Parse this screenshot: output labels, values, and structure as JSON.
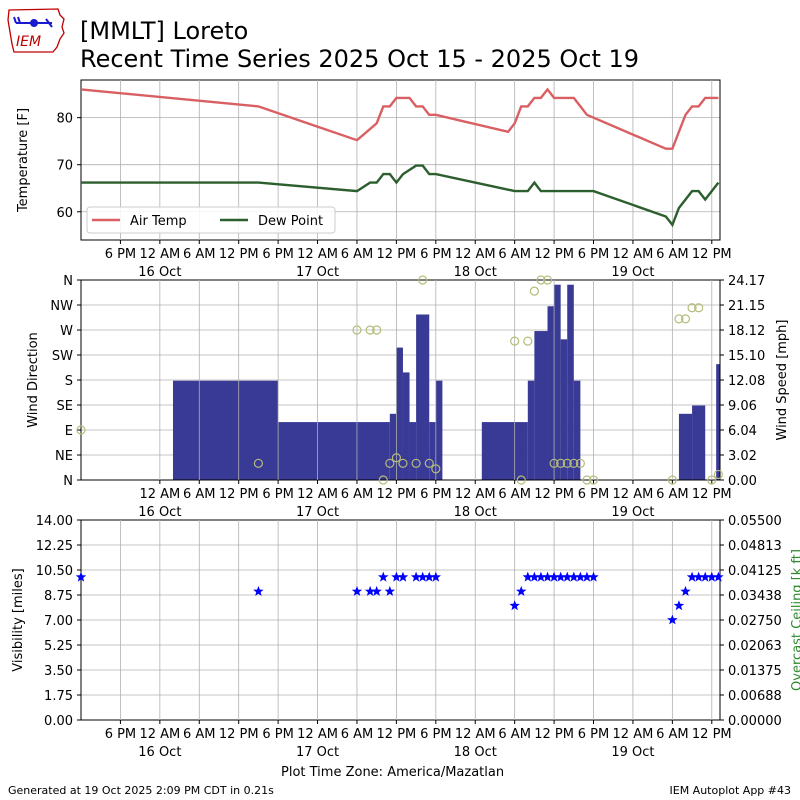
{
  "header": {
    "line1": "[MMLT] Loreto",
    "line2": "Recent Time Series 2025 Oct 15 - 2025 Oct 19"
  },
  "logo": {
    "text": "IEM",
    "colors": {
      "text": "#c00000",
      "outline": "#c00000",
      "symbol": "#1a1ad0"
    }
  },
  "footer": {
    "generated": "Generated at 19 Oct 2025 2:09 PM CDT in 0.21s",
    "timezone": "Plot Time Zone: America/Mazatlan",
    "app": "IEM Autoplot App #43"
  },
  "x_axis": {
    "start": "2025-10-15 12:00",
    "end": "2025-10-19 13:15",
    "tick_labels": [
      "6 PM",
      "12 AM",
      "6 AM",
      "12 PM",
      "6 PM",
      "12 AM",
      "6 AM",
      "12 PM",
      "6 PM",
      "12 AM",
      "6 AM",
      "12 PM",
      "6 PM",
      "12 AM",
      "6 AM",
      "12 PM"
    ],
    "date_labels": [
      "16 Oct",
      "17 Oct",
      "18 Oct",
      "19 Oct"
    ]
  },
  "chart_data": [
    {
      "type": "line",
      "ylabel": "Temperature [F]",
      "ylim": [
        54,
        88
      ],
      "yticks": [
        60,
        70,
        80
      ],
      "grid": true,
      "legend": "bottom-left",
      "series": [
        {
          "name": "Air Temp",
          "color": "#d95f63",
          "points": [
            [
              "2025-10-15 12:00",
              86
            ],
            [
              "2025-10-16 15:00",
              82.4
            ],
            [
              "2025-10-17 06:00",
              75.2
            ],
            [
              "2025-10-17 09:00",
              78.8
            ],
            [
              "2025-10-17 10:00",
              82.4
            ],
            [
              "2025-10-17 11:00",
              82.4
            ],
            [
              "2025-10-17 12:00",
              84.2
            ],
            [
              "2025-10-17 14:00",
              84.2
            ],
            [
              "2025-10-17 15:00",
              82.4
            ],
            [
              "2025-10-17 16:00",
              82.4
            ],
            [
              "2025-10-17 17:00",
              80.6
            ],
            [
              "2025-10-17 18:00",
              80.6
            ],
            [
              "2025-10-18 05:00",
              77
            ],
            [
              "2025-10-18 06:00",
              78.8
            ],
            [
              "2025-10-18 07:00",
              82.4
            ],
            [
              "2025-10-18 08:00",
              82.4
            ],
            [
              "2025-10-18 09:00",
              84.2
            ],
            [
              "2025-10-18 10:00",
              84.2
            ],
            [
              "2025-10-18 11:00",
              86
            ],
            [
              "2025-10-18 12:00",
              84.2
            ],
            [
              "2025-10-18 15:00",
              84.2
            ],
            [
              "2025-10-18 16:00",
              82.4
            ],
            [
              "2025-10-18 17:00",
              80.6
            ],
            [
              "2025-10-19 05:00",
              73.4
            ],
            [
              "2025-10-19 06:00",
              73.4
            ],
            [
              "2025-10-19 08:00",
              80.6
            ],
            [
              "2025-10-19 09:00",
              82.4
            ],
            [
              "2025-10-19 10:00",
              82.4
            ],
            [
              "2025-10-19 11:00",
              84.2
            ],
            [
              "2025-10-19 13:00",
              84.2
            ]
          ]
        },
        {
          "name": "Dew Point",
          "color": "#2d5f2e",
          "points": [
            [
              "2025-10-15 12:00",
              66.2
            ],
            [
              "2025-10-16 15:00",
              66.2
            ],
            [
              "2025-10-17 06:00",
              64.4
            ],
            [
              "2025-10-17 08:00",
              66.2
            ],
            [
              "2025-10-17 09:00",
              66.2
            ],
            [
              "2025-10-17 10:00",
              68
            ],
            [
              "2025-10-17 11:00",
              68
            ],
            [
              "2025-10-17 12:00",
              66.2
            ],
            [
              "2025-10-17 13:00",
              68
            ],
            [
              "2025-10-17 15:00",
              69.8
            ],
            [
              "2025-10-17 16:00",
              69.8
            ],
            [
              "2025-10-17 17:00",
              68
            ],
            [
              "2025-10-17 18:00",
              68
            ],
            [
              "2025-10-18 06:00",
              64.4
            ],
            [
              "2025-10-18 08:00",
              64.4
            ],
            [
              "2025-10-18 09:00",
              66.2
            ],
            [
              "2025-10-18 10:00",
              64.4
            ],
            [
              "2025-10-18 18:00",
              64.4
            ],
            [
              "2025-10-19 05:00",
              59
            ],
            [
              "2025-10-19 06:00",
              57.2
            ],
            [
              "2025-10-19 07:00",
              60.8
            ],
            [
              "2025-10-19 09:00",
              64.4
            ],
            [
              "2025-10-19 10:00",
              64.4
            ],
            [
              "2025-10-19 11:00",
              62.6
            ],
            [
              "2025-10-19 13:00",
              66.2
            ]
          ]
        }
      ]
    },
    {
      "type": "bar",
      "ylabel": "Wind Direction",
      "y2label": "Wind Speed [mph]",
      "direction_ticks": [
        "N",
        "NE",
        "E",
        "SE",
        "S",
        "SW",
        "W",
        "NW",
        "N"
      ],
      "direction_range": [
        0,
        360
      ],
      "speed_ticks": [
        "0.00",
        "3.02",
        "6.04",
        "9.06",
        "12.08",
        "15.10",
        "18.12",
        "21.15",
        "24.17"
      ],
      "speed_range": [
        0,
        24.17
      ],
      "grid": true,
      "speed_bars": {
        "color": "#393996",
        "segments": [
          [
            "2025-10-16 02:00",
            "2025-10-16 18:00",
            12
          ],
          [
            "2025-10-16 18:00",
            "2025-10-17 11:00",
            7
          ],
          [
            "2025-10-17 11:00",
            "2025-10-17 12:00",
            8
          ],
          [
            "2025-10-17 12:00",
            "2025-10-17 13:00",
            16
          ],
          [
            "2025-10-17 13:00",
            "2025-10-17 14:00",
            13
          ],
          [
            "2025-10-17 14:00",
            "2025-10-17 15:00",
            7
          ],
          [
            "2025-10-17 15:00",
            "2025-10-17 17:00",
            20
          ],
          [
            "2025-10-17 17:00",
            "2025-10-17 18:00",
            7
          ],
          [
            "2025-10-17 18:00",
            "2025-10-17 19:00",
            12
          ],
          [
            "2025-10-18 01:00",
            "2025-10-18 08:00",
            7
          ],
          [
            "2025-10-18 08:00",
            "2025-10-18 09:00",
            12
          ],
          [
            "2025-10-18 09:00",
            "2025-10-18 11:00",
            18
          ],
          [
            "2025-10-18 11:00",
            "2025-10-18 12:00",
            21
          ],
          [
            "2025-10-18 12:00",
            "2025-10-18 13:00",
            23.6
          ],
          [
            "2025-10-18 13:00",
            "2025-10-18 14:00",
            17
          ],
          [
            "2025-10-18 14:00",
            "2025-10-18 15:00",
            23.6
          ],
          [
            "2025-10-18 15:00",
            "2025-10-18 16:00",
            12
          ],
          [
            "2025-10-19 07:00",
            "2025-10-19 09:00",
            8
          ],
          [
            "2025-10-19 09:00",
            "2025-10-19 11:00",
            9
          ],
          [
            "2025-10-19 12:40",
            "2025-10-19 13:15",
            14
          ]
        ]
      },
      "direction_points": {
        "color": "#b5bd7a",
        "points": [
          [
            "2025-10-15 12:00",
            90
          ],
          [
            "2025-10-16 15:00",
            30
          ],
          [
            "2025-10-17 06:00",
            270
          ],
          [
            "2025-10-17 08:00",
            270
          ],
          [
            "2025-10-17 09:00",
            270
          ],
          [
            "2025-10-17 10:00",
            0
          ],
          [
            "2025-10-17 11:00",
            30
          ],
          [
            "2025-10-17 12:00",
            40
          ],
          [
            "2025-10-17 13:00",
            30
          ],
          [
            "2025-10-17 15:00",
            30
          ],
          [
            "2025-10-17 16:00",
            360
          ],
          [
            "2025-10-17 17:00",
            30
          ],
          [
            "2025-10-17 18:00",
            20
          ],
          [
            "2025-10-18 06:00",
            250
          ],
          [
            "2025-10-18 07:00",
            0
          ],
          [
            "2025-10-18 08:00",
            250
          ],
          [
            "2025-10-18 09:00",
            340
          ],
          [
            "2025-10-18 10:00",
            360
          ],
          [
            "2025-10-18 11:00",
            360
          ],
          [
            "2025-10-18 12:00",
            30
          ],
          [
            "2025-10-18 13:00",
            30
          ],
          [
            "2025-10-18 14:00",
            30
          ],
          [
            "2025-10-18 15:00",
            30
          ],
          [
            "2025-10-18 16:00",
            30
          ],
          [
            "2025-10-18 17:00",
            0
          ],
          [
            "2025-10-18 18:00",
            0
          ],
          [
            "2025-10-19 06:00",
            0
          ],
          [
            "2025-10-19 07:00",
            290
          ],
          [
            "2025-10-19 08:00",
            290
          ],
          [
            "2025-10-19 09:00",
            310
          ],
          [
            "2025-10-19 10:00",
            310
          ],
          [
            "2025-10-19 12:00",
            0
          ],
          [
            "2025-10-19 13:00",
            10
          ]
        ]
      }
    },
    {
      "type": "scatter",
      "ylabel": "Visibility [miles]",
      "y2label": "Overcast Ceiling [k ft]",
      "y2label_color": "#2e8b2e",
      "yticks": [
        "0.00",
        "1.75",
        "3.50",
        "5.25",
        "7.00",
        "8.75",
        "10.50",
        "12.25",
        "14.00"
      ],
      "ylim": [
        0,
        14
      ],
      "y2ticks": [
        "0.00000",
        "0.00688",
        "0.01375",
        "0.02063",
        "0.02750",
        "0.03438",
        "0.04125",
        "0.04813",
        "0.05500"
      ],
      "y2lim": [
        0,
        0.055
      ],
      "grid": true,
      "marker_color": "#0000ff",
      "points": [
        [
          "2025-10-15 12:00",
          10
        ],
        [
          "2025-10-16 15:00",
          9
        ],
        [
          "2025-10-17 06:00",
          9
        ],
        [
          "2025-10-17 08:00",
          9
        ],
        [
          "2025-10-17 09:00",
          9
        ],
        [
          "2025-10-17 10:00",
          10
        ],
        [
          "2025-10-17 11:00",
          9
        ],
        [
          "2025-10-17 12:00",
          10
        ],
        [
          "2025-10-17 13:00",
          10
        ],
        [
          "2025-10-17 15:00",
          10
        ],
        [
          "2025-10-17 16:00",
          10
        ],
        [
          "2025-10-17 17:00",
          10
        ],
        [
          "2025-10-17 18:00",
          10
        ],
        [
          "2025-10-18 06:00",
          8
        ],
        [
          "2025-10-18 07:00",
          9
        ],
        [
          "2025-10-18 08:00",
          10
        ],
        [
          "2025-10-18 09:00",
          10
        ],
        [
          "2025-10-18 10:00",
          10
        ],
        [
          "2025-10-18 11:00",
          10
        ],
        [
          "2025-10-18 12:00",
          10
        ],
        [
          "2025-10-18 13:00",
          10
        ],
        [
          "2025-10-18 14:00",
          10
        ],
        [
          "2025-10-18 15:00",
          10
        ],
        [
          "2025-10-18 16:00",
          10
        ],
        [
          "2025-10-18 17:00",
          10
        ],
        [
          "2025-10-18 18:00",
          10
        ],
        [
          "2025-10-19 06:00",
          7
        ],
        [
          "2025-10-19 07:00",
          8
        ],
        [
          "2025-10-19 08:00",
          9
        ],
        [
          "2025-10-19 09:00",
          10
        ],
        [
          "2025-10-19 10:00",
          10
        ],
        [
          "2025-10-19 11:00",
          10
        ],
        [
          "2025-10-19 12:00",
          10
        ],
        [
          "2025-10-19 13:00",
          10
        ]
      ]
    }
  ]
}
